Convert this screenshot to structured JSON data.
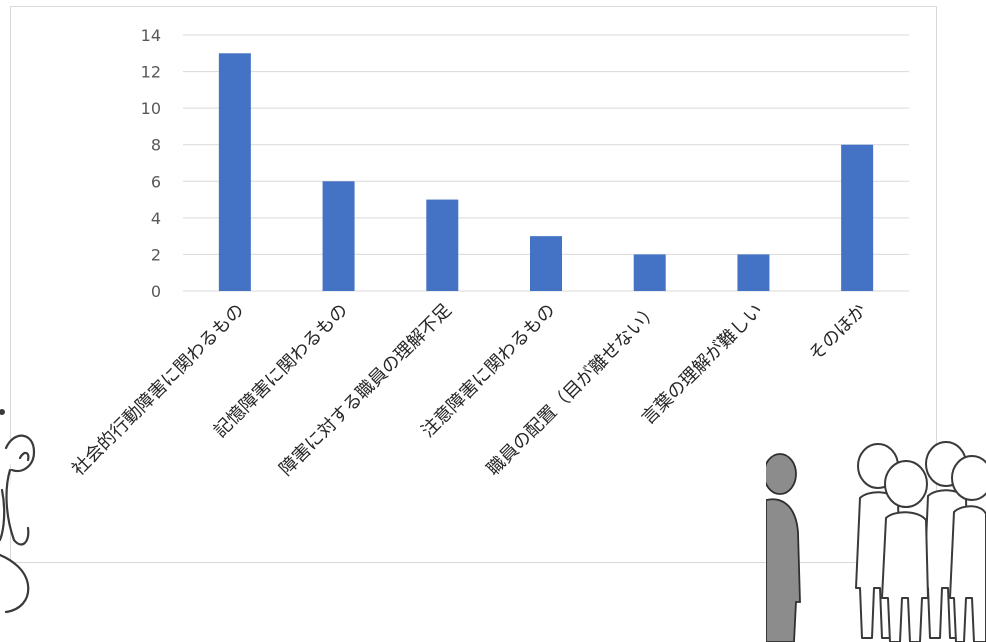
{
  "chart_data": {
    "type": "bar",
    "categories": [
      "社会的行動障害に関わるもの",
      "記憶障害に関わるもの",
      "障害に対する職員の理解不足",
      "注意障害に関わるもの",
      "職員の配置（目が離せない）",
      "言葉の理解が難しい",
      "そのほか"
    ],
    "values": [
      13,
      6,
      5,
      3,
      2,
      2,
      8
    ],
    "ylim": [
      0,
      14
    ],
    "yticks": [
      0,
      2,
      4,
      6,
      8,
      10,
      12,
      14
    ],
    "title": "",
    "xlabel": "",
    "ylabel": "",
    "grid": true,
    "bar_color": "#4472c4"
  },
  "decorations": {
    "left_figure": "raised-hand-person-sketch",
    "right_figure": "crowd-of-people-sketch"
  }
}
